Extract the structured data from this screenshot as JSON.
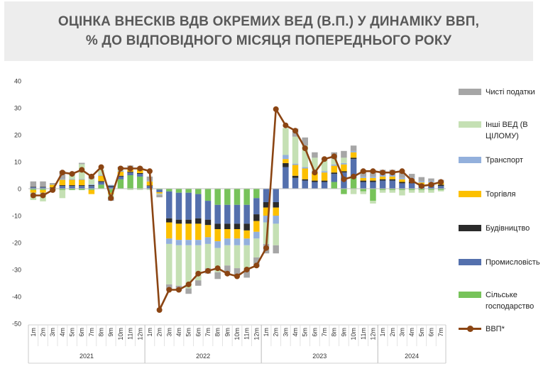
{
  "title_lines": [
    "ОЦІНКА ВНЕСКІВ ВДВ ОКРЕМИХ ВЕД (В.П.) У ДИНАМІКУ ВВП,",
    "% ДО ВІДПОВІДНОГО МІСЯЦЯ ПОПЕРЕДНЬОГО РОКУ"
  ],
  "chart_data": {
    "type": "bar",
    "stacked": true,
    "ylim": [
      -50,
      40
    ],
    "yticks": [
      40,
      30,
      20,
      10,
      0,
      -10,
      -20,
      -30,
      -40,
      -50
    ],
    "month_labels": [
      "1m",
      "2m",
      "3m",
      "4m",
      "5m",
      "6m",
      "7m",
      "8m",
      "9m",
      "10m",
      "11m",
      "12m",
      "1m",
      "2m",
      "3m",
      "4m",
      "5m",
      "6m",
      "7m",
      "8m",
      "9m",
      "10m",
      "11m",
      "12m",
      "1m",
      "2m",
      "3m",
      "4m",
      "5m",
      "6m",
      "7m",
      "8m",
      "9m",
      "10m",
      "11m",
      "12m",
      "1m",
      "2m",
      "3m",
      "4m",
      "5m",
      "6m",
      "7m"
    ],
    "years": [
      {
        "label": "2021",
        "months": 12
      },
      {
        "label": "2022",
        "months": 12
      },
      {
        "label": "2023",
        "months": 12
      },
      {
        "label": "2024",
        "months": 7
      }
    ],
    "series": [
      {
        "name": "Сільське господарство",
        "color": "#77c35a",
        "values": [
          -0.5,
          -0.5,
          -0.5,
          -0.5,
          -0.5,
          -0.5,
          -0.5,
          1.5,
          -1.5,
          3.5,
          5.0,
          4.5,
          0.0,
          -0.3,
          -1.0,
          -1.5,
          -1.5,
          -2.0,
          -4.5,
          -6.0,
          -6.0,
          -6.0,
          -6.0,
          -3.5,
          0.0,
          0.0,
          0.0,
          0.0,
          0.0,
          0.0,
          0.0,
          2.5,
          -2.0,
          4.0,
          -1.0,
          -4.5,
          -0.5,
          -0.5,
          -0.5,
          -0.5,
          -0.5,
          -0.5,
          -0.5
        ]
      },
      {
        "name": "Промисловість",
        "color": "#5470ad",
        "values": [
          0.5,
          0.5,
          0.3,
          1.0,
          1.0,
          1.0,
          1.0,
          1.0,
          0.8,
          1.0,
          1.0,
          1.0,
          1.0,
          -1.0,
          -10.0,
          -10.0,
          -10.0,
          -9.0,
          -7.0,
          -7.0,
          -7.0,
          -7.0,
          -7.0,
          -6.0,
          -5.0,
          -5.0,
          8.0,
          4.0,
          3.0,
          2.5,
          2.5,
          3.0,
          6.0,
          7.0,
          2.5,
          2.5,
          3.0,
          3.0,
          2.0,
          2.0,
          1.0,
          1.0,
          1.0
        ]
      },
      {
        "name": "Будівництво",
        "color": "#2b2b2b",
        "values": [
          0.2,
          0.2,
          0.2,
          0.3,
          0.3,
          0.3,
          0.3,
          0.3,
          0.3,
          0.3,
          0.3,
          0.3,
          0.2,
          0.0,
          -1.5,
          -1.5,
          -1.5,
          -2.0,
          -2.0,
          -2.0,
          -2.0,
          -2.0,
          -2.5,
          -2.5,
          -2.0,
          -2.0,
          1.5,
          0.8,
          0.5,
          0.5,
          0.5,
          0.5,
          0.5,
          0.5,
          0.5,
          0.5,
          0.5,
          0.5,
          0.5,
          0.5,
          0.5,
          0.5,
          0.5
        ]
      },
      {
        "name": "Торгівля",
        "color": "#fcc000",
        "values": [
          -1.0,
          -1.0,
          1.0,
          2.0,
          2.0,
          2.0,
          -1.5,
          2.0,
          -0.5,
          1.5,
          1.5,
          1.5,
          1.5,
          -0.5,
          -6.0,
          -6.0,
          -6.0,
          -6.0,
          -4.5,
          -4.5,
          -3.5,
          -3.5,
          -3.0,
          -4.0,
          -3.0,
          -3.0,
          1.5,
          4.0,
          4.0,
          3.0,
          3.0,
          2.5,
          2.5,
          2.0,
          1.0,
          1.0,
          1.0,
          1.0,
          1.0,
          1.0,
          0.8,
          0.8,
          0.8
        ]
      },
      {
        "name": "Транспорт",
        "color": "#93b0dc",
        "values": [
          -0.2,
          -0.2,
          0.1,
          0.3,
          0.3,
          0.3,
          0.3,
          0.3,
          0.3,
          0.3,
          0.3,
          0.3,
          0.3,
          -0.2,
          -2.0,
          -2.0,
          -2.0,
          -2.0,
          -2.5,
          -2.5,
          -2.5,
          -2.5,
          -2.5,
          -2.5,
          -2.5,
          -3.0,
          1.5,
          0.5,
          0.5,
          0.5,
          0.5,
          0.5,
          0.5,
          0.5,
          0.5,
          0.5,
          0.5,
          0.5,
          0.5,
          0.5,
          0.5,
          0.5,
          0.5
        ]
      },
      {
        "name": "Інші ВЕД (В ЦІЛОМУ)",
        "color": "#c5e0b4",
        "values": [
          -2.5,
          -3.0,
          -0.2,
          -3.0,
          1.5,
          5.5,
          2.0,
          2.0,
          -1.5,
          1.0,
          -0.5,
          -0.5,
          -0.5,
          -0.2,
          -15.0,
          -15.0,
          -16.0,
          -13.0,
          -9.0,
          -9.0,
          -7.5,
          -8.5,
          -8.5,
          -7.0,
          -8.0,
          -8.0,
          10.0,
          10.0,
          8.0,
          5.0,
          4.0,
          2.0,
          2.0,
          -2.0,
          -1.0,
          -1.0,
          -1.0,
          -1.0,
          -2.0,
          -1.0,
          -1.0,
          -1.0,
          -0.5
        ]
      },
      {
        "name": "Чисті податки",
        "color": "#a6a6a6",
        "values": [
          2.0,
          2.0,
          0.5,
          3.0,
          0.5,
          0.5,
          1.0,
          0.0,
          -1.0,
          0.5,
          0.5,
          0.5,
          1.5,
          -1.0,
          -2.0,
          -2.0,
          -2.0,
          -2.0,
          -2.0,
          -2.5,
          -2.5,
          -2.5,
          -3.5,
          -3.5,
          -3.5,
          -3.0,
          0.0,
          3.0,
          3.0,
          2.0,
          1.0,
          2.5,
          2.5,
          2.0,
          2.5,
          2.5,
          2.0,
          2.0,
          2.0,
          1.5,
          1.5,
          1.0,
          0.5
        ]
      }
    ],
    "line": {
      "name": "ВВП*",
      "color": "#8b4513",
      "values": [
        -2.5,
        -2.5,
        -0.5,
        6.0,
        5.5,
        7.0,
        4.5,
        8.0,
        -3.5,
        7.5,
        7.5,
        7.5,
        6.5,
        -45.0,
        -37.5,
        -37.5,
        -35.5,
        -31.5,
        -30.5,
        -29.5,
        -31.5,
        -32.5,
        -30.0,
        -28.5,
        -22.0,
        29.5,
        23.5,
        21.5,
        15.0,
        6.0,
        11.0,
        12.0,
        3.5,
        4.5,
        6.5,
        6.5,
        6.0,
        6.0,
        6.5,
        3.0,
        1.0,
        1.5,
        2.5
      ]
    },
    "legend": [
      {
        "name": "Чисті податки",
        "color": "#a6a6a6",
        "kind": "bar"
      },
      {
        "name": "Інші ВЕД (В ЦІЛОМУ)",
        "color": "#c5e0b4",
        "kind": "bar"
      },
      {
        "name": "Транспорт",
        "color": "#93b0dc",
        "kind": "bar"
      },
      {
        "name": "Торгівля",
        "color": "#fcc000",
        "kind": "bar"
      },
      {
        "name": "Будівництво",
        "color": "#2b2b2b",
        "kind": "bar"
      },
      {
        "name": "Промисловість",
        "color": "#5470ad",
        "kind": "bar"
      },
      {
        "name": "Сільське господарство",
        "color": "#77c35a",
        "kind": "bar"
      },
      {
        "name": "ВВП*",
        "color": "#8b4513",
        "kind": "line"
      }
    ],
    "legend_position": "right"
  }
}
